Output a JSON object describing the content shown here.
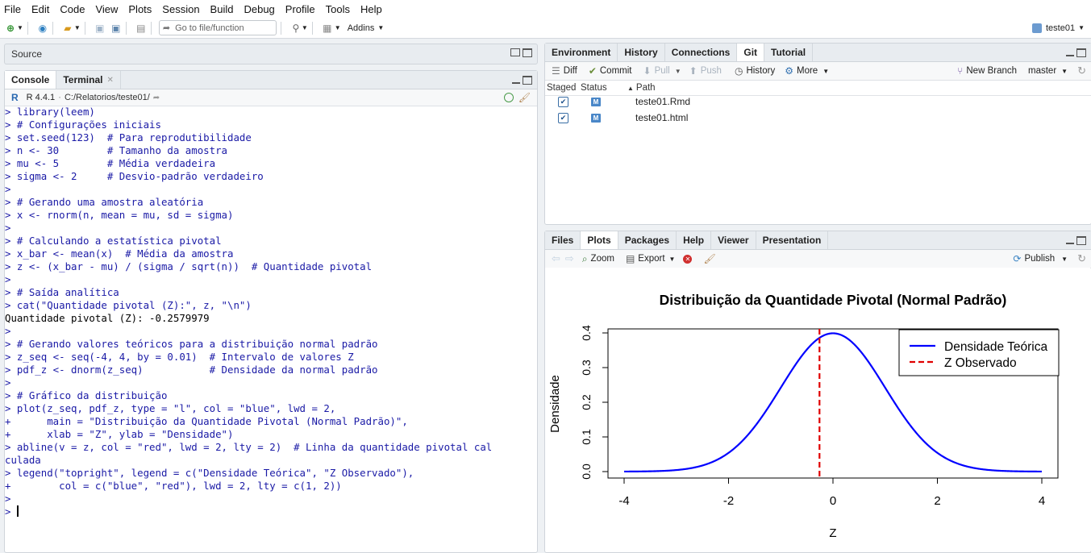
{
  "menu": [
    "File",
    "Edit",
    "Code",
    "View",
    "Plots",
    "Session",
    "Build",
    "Debug",
    "Profile",
    "Tools",
    "Help"
  ],
  "toolbar": {
    "goto_placeholder": "Go to file/function",
    "addins_label": "Addins",
    "project_label": "teste01"
  },
  "source_pane": {
    "title": "Source"
  },
  "console_pane": {
    "tabs": [
      "Console",
      "Terminal"
    ],
    "r_version": "R 4.4.1",
    "path": "C:/Relatorios/teste01/",
    "lines": [
      {
        "t": "> library(leem)",
        "k": "in"
      },
      {
        "t": "> # Configurações iniciais",
        "k": "in"
      },
      {
        "t": "> set.seed(123)  # Para reprodutibilidade",
        "k": "in"
      },
      {
        "t": "> n <- 30        # Tamanho da amostra",
        "k": "in"
      },
      {
        "t": "> mu <- 5        # Média verdadeira",
        "k": "in"
      },
      {
        "t": "> sigma <- 2     # Desvio-padrão verdadeiro",
        "k": "in"
      },
      {
        "t": ">",
        "k": "in"
      },
      {
        "t": "> # Gerando uma amostra aleatória",
        "k": "in"
      },
      {
        "t": "> x <- rnorm(n, mean = mu, sd = sigma)",
        "k": "in"
      },
      {
        "t": ">",
        "k": "in"
      },
      {
        "t": "> # Calculando a estatística pivotal",
        "k": "in"
      },
      {
        "t": "> x_bar <- mean(x)  # Média da amostra",
        "k": "in"
      },
      {
        "t": "> z <- (x_bar - mu) / (sigma / sqrt(n))  # Quantidade pivotal",
        "k": "in"
      },
      {
        "t": ">",
        "k": "in"
      },
      {
        "t": "> # Saída analítica",
        "k": "in"
      },
      {
        "t": "> cat(\"Quantidade pivotal (Z):\", z, \"\\n\")",
        "k": "in"
      },
      {
        "t": "Quantidade pivotal (Z): -0.2579979",
        "k": "out"
      },
      {
        "t": ">",
        "k": "in"
      },
      {
        "t": "> # Gerando valores teóricos para a distribuição normal padrão",
        "k": "in"
      },
      {
        "t": "> z_seq <- seq(-4, 4, by = 0.01)  # Intervalo de valores Z",
        "k": "in"
      },
      {
        "t": "> pdf_z <- dnorm(z_seq)           # Densidade da normal padrão",
        "k": "in"
      },
      {
        "t": ">",
        "k": "in"
      },
      {
        "t": "> # Gráfico da distribuição",
        "k": "in"
      },
      {
        "t": "> plot(z_seq, pdf_z, type = \"l\", col = \"blue\", lwd = 2,",
        "k": "in"
      },
      {
        "t": "+      main = \"Distribuição da Quantidade Pivotal (Normal Padrão)\",",
        "k": "in"
      },
      {
        "t": "+      xlab = \"Z\", ylab = \"Densidade\")",
        "k": "in"
      },
      {
        "t": "> abline(v = z, col = \"red\", lwd = 2, lty = 2)  # Linha da quantidade pivotal cal",
        "k": "in"
      },
      {
        "t": "culada",
        "k": "in"
      },
      {
        "t": "> legend(\"topright\", legend = c(\"Densidade Teórica\", \"Z Observado\"),",
        "k": "in"
      },
      {
        "t": "+        col = c(\"blue\", \"red\"), lwd = 2, lty = c(1, 2))",
        "k": "in"
      },
      {
        "t": ">",
        "k": "in"
      }
    ],
    "prompt": ">"
  },
  "env_pane": {
    "tabs": [
      "Environment",
      "History",
      "Connections",
      "Git",
      "Tutorial"
    ],
    "active_tab": "Git",
    "toolbar": {
      "diff": "Diff",
      "commit": "Commit",
      "pull": "Pull",
      "push": "Push",
      "history": "History",
      "more": "More",
      "new_branch": "New Branch",
      "branch": "master"
    },
    "columns": [
      "Staged",
      "Status",
      "Path"
    ],
    "files": [
      {
        "staged": true,
        "status": "M",
        "path": "teste01.Rmd"
      },
      {
        "staged": true,
        "status": "M",
        "path": "teste01.html"
      }
    ]
  },
  "files_pane": {
    "tabs": [
      "Files",
      "Plots",
      "Packages",
      "Help",
      "Viewer",
      "Presentation"
    ],
    "active_tab": "Plots",
    "toolbar": {
      "zoom": "Zoom",
      "export": "Export",
      "publish": "Publish"
    }
  },
  "chart_data": {
    "type": "line",
    "title": "Distribuição da Quantidade Pivotal (Normal Padrão)",
    "xlabel": "Z",
    "ylabel": "Densidade",
    "xlim": [
      -4,
      4
    ],
    "ylim": [
      0,
      0.4
    ],
    "xticks": [
      "-4",
      "-2",
      "0",
      "2",
      "4"
    ],
    "yticks": [
      "0.0",
      "0.1",
      "0.2",
      "0.3",
      "0.4"
    ],
    "series": [
      {
        "name": "Densidade Teórica",
        "color": "#0000ff",
        "function": "dnorm",
        "x_from": -4,
        "x_to": 4,
        "step": 0.01,
        "style": "solid"
      },
      {
        "name": "Z Observado",
        "color": "#e00000",
        "vline": -0.2579979,
        "style": "dashed"
      }
    ],
    "legend": "top-right"
  }
}
